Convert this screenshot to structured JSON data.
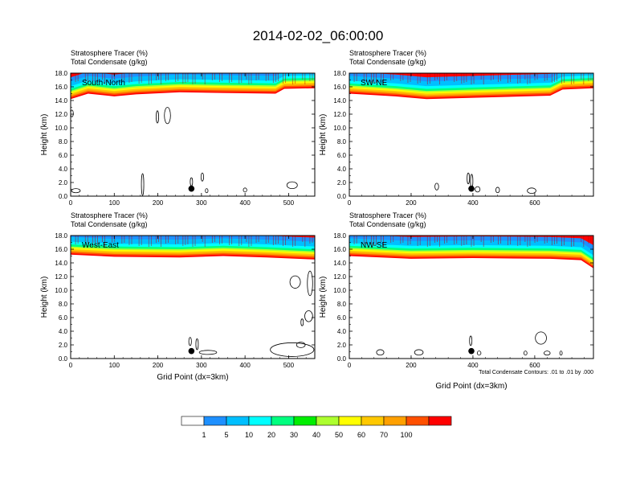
{
  "title": "2014-02-02_06:00:00",
  "colorbar": {
    "colors": [
      "#ffffff",
      "#1e90ff",
      "#00bfff",
      "#00ffff",
      "#00ff7f",
      "#00ee00",
      "#adff2f",
      "#ffff00",
      "#ffc800",
      "#ffa000",
      "#ff5000",
      "#ff0000"
    ],
    "labels": [
      "1",
      "5",
      "10",
      "20",
      "30",
      "40",
      "50",
      "60",
      "70",
      "100"
    ]
  },
  "chart_data": [
    {
      "type": "heatmap",
      "header_line1": "Stratosphere Tracer   (%)",
      "header_line2": "Total Condensate   (g/kg)",
      "panel_label": "South-North",
      "ylabel": "Height (km)",
      "xlabel": "",
      "ylim": [
        0,
        18
      ],
      "xlim": [
        0,
        560
      ],
      "yticks": [
        "0.0",
        "2.0",
        "4.0",
        "6.0",
        "8.0",
        "10.0",
        "12.0",
        "14.0",
        "16.0",
        "18.0"
      ],
      "xticks": [
        0,
        100,
        200,
        300,
        400,
        500
      ],
      "tracer_base_km": [
        [
          0,
          14.8
        ],
        [
          40,
          15.6
        ],
        [
          100,
          15.2
        ],
        [
          150,
          15.5
        ],
        [
          250,
          15.8
        ],
        [
          350,
          15.7
        ],
        [
          470,
          15.6
        ],
        [
          490,
          16.3
        ],
        [
          560,
          16.4
        ]
      ],
      "surface_marker": [
        277,
        1.1
      ],
      "contours": [
        {
          "cx": 222,
          "cy": 11.8,
          "rx": 7,
          "ry": 1.2
        },
        {
          "cx": 199,
          "cy": 11.6,
          "rx": 2,
          "ry": 0.9
        },
        {
          "cx": 3,
          "cy": 12.1,
          "rx": 3,
          "ry": 0.5
        },
        {
          "cx": 12,
          "cy": 0.8,
          "rx": 10,
          "ry": 0.3
        },
        {
          "cx": 165,
          "cy": 1.7,
          "rx": 2,
          "ry": 1.6
        },
        {
          "cx": 277,
          "cy": 2.1,
          "rx": 2,
          "ry": 0.6
        },
        {
          "cx": 302,
          "cy": 2.8,
          "rx": 3,
          "ry": 0.6
        },
        {
          "cx": 312,
          "cy": 0.8,
          "rx": 3,
          "ry": 0.3
        },
        {
          "cx": 400,
          "cy": 0.9,
          "rx": 4,
          "ry": 0.3
        },
        {
          "cx": 508,
          "cy": 1.6,
          "rx": 12,
          "ry": 0.5
        }
      ]
    },
    {
      "type": "heatmap",
      "header_line1": "Stratosphere Tracer   (%)",
      "header_line2": "Total Condensate   (g/kg)",
      "panel_label": "SW-NE",
      "ylabel": "Height (km)",
      "xlabel": "",
      "ylim": [
        0,
        18
      ],
      "xlim": [
        0,
        790
      ],
      "yticks": [
        "0.0",
        "2.0",
        "4.0",
        "6.0",
        "8.0",
        "10.0",
        "12.0",
        "14.0",
        "16.0",
        "18.0"
      ],
      "xticks": [
        0,
        200,
        400,
        600
      ],
      "tracer_base_km": [
        [
          0,
          15.6
        ],
        [
          150,
          15.2
        ],
        [
          250,
          14.8
        ],
        [
          400,
          15.0
        ],
        [
          650,
          15.3
        ],
        [
          690,
          16.2
        ],
        [
          790,
          16.4
        ]
      ],
      "surface_marker": [
        395,
        1.1
      ],
      "contours": [
        {
          "cx": 283,
          "cy": 1.4,
          "rx": 6,
          "ry": 0.5
        },
        {
          "cx": 385,
          "cy": 2.6,
          "rx": 3,
          "ry": 0.8
        },
        {
          "cx": 396,
          "cy": 2.2,
          "rx": 2,
          "ry": 1.0
        },
        {
          "cx": 415,
          "cy": 1.0,
          "rx": 8,
          "ry": 0.4
        },
        {
          "cx": 480,
          "cy": 0.9,
          "rx": 6,
          "ry": 0.4
        },
        {
          "cx": 590,
          "cy": 0.8,
          "rx": 14,
          "ry": 0.4
        }
      ]
    },
    {
      "type": "heatmap",
      "header_line1": "Stratosphere Tracer   (%)",
      "header_line2": "Total Condensate   (g/kg)",
      "panel_label": "West-East",
      "ylabel": "Height (km)",
      "xlabel": "Grid Point (dx=3km)",
      "ylim": [
        0,
        18
      ],
      "xlim": [
        0,
        560
      ],
      "yticks": [
        "0.0",
        "2.0",
        "4.0",
        "6.0",
        "8.0",
        "10.0",
        "12.0",
        "14.0",
        "16.0",
        "18.0"
      ],
      "xticks": [
        0,
        100,
        200,
        300,
        400,
        500
      ],
      "tracer_base_km": [
        [
          0,
          15.8
        ],
        [
          100,
          15.5
        ],
        [
          250,
          15.4
        ],
        [
          350,
          15.6
        ],
        [
          450,
          15.4
        ],
        [
          520,
          15.2
        ],
        [
          560,
          15.1
        ]
      ],
      "surface_marker": [
        277,
        1.1
      ],
      "contours": [
        {
          "cx": 515,
          "cy": 11.2,
          "rx": 12,
          "ry": 0.9
        },
        {
          "cx": 549,
          "cy": 11.0,
          "rx": 6,
          "ry": 1.8
        },
        {
          "cx": 546,
          "cy": 6.2,
          "rx": 9,
          "ry": 0.8
        },
        {
          "cx": 531,
          "cy": 5.3,
          "rx": 2,
          "ry": 0.5
        },
        {
          "cx": 274,
          "cy": 2.5,
          "rx": 3,
          "ry": 0.6
        },
        {
          "cx": 290,
          "cy": 2.1,
          "rx": 2,
          "ry": 0.8
        },
        {
          "cx": 315,
          "cy": 0.9,
          "rx": 20,
          "ry": 0.3
        },
        {
          "cx": 508,
          "cy": 1.3,
          "rx": 50,
          "ry": 1.0
        },
        {
          "cx": 528,
          "cy": 2.0,
          "rx": 10,
          "ry": 0.4
        }
      ]
    },
    {
      "type": "heatmap",
      "header_line1": "Stratosphere Tracer   (%)",
      "header_line2": "Total Condensate   (g/kg)",
      "panel_label": "NW-SE",
      "ylabel": "Height (km)",
      "xlabel": "Grid Point (dx=3km)",
      "ylim": [
        0,
        18
      ],
      "xlim": [
        0,
        790
      ],
      "yticks": [
        "0.0",
        "2.0",
        "4.0",
        "6.0",
        "8.0",
        "10.0",
        "12.0",
        "14.0",
        "16.0",
        "18.0"
      ],
      "xticks": [
        0,
        200,
        400,
        600
      ],
      "tracer_base_km": [
        [
          0,
          15.6
        ],
        [
          200,
          15.2
        ],
        [
          400,
          15.3
        ],
        [
          650,
          15.2
        ],
        [
          750,
          15.0
        ],
        [
          790,
          13.8
        ]
      ],
      "surface_marker": [
        395,
        1.1
      ],
      "contours": [
        {
          "cx": 100,
          "cy": 0.9,
          "rx": 12,
          "ry": 0.4
        },
        {
          "cx": 225,
          "cy": 0.9,
          "rx": 14,
          "ry": 0.4
        },
        {
          "cx": 393,
          "cy": 2.6,
          "rx": 3,
          "ry": 0.7
        },
        {
          "cx": 420,
          "cy": 0.8,
          "rx": 6,
          "ry": 0.3
        },
        {
          "cx": 620,
          "cy": 3.0,
          "rx": 18,
          "ry": 0.9
        },
        {
          "cx": 570,
          "cy": 0.8,
          "rx": 5,
          "ry": 0.3
        },
        {
          "cx": 640,
          "cy": 0.8,
          "rx": 10,
          "ry": 0.3
        },
        {
          "cx": 685,
          "cy": 0.8,
          "rx": 3,
          "ry": 0.3
        }
      ],
      "footnote": "Total Condensate Contours: .01 to .01 by .000"
    }
  ]
}
